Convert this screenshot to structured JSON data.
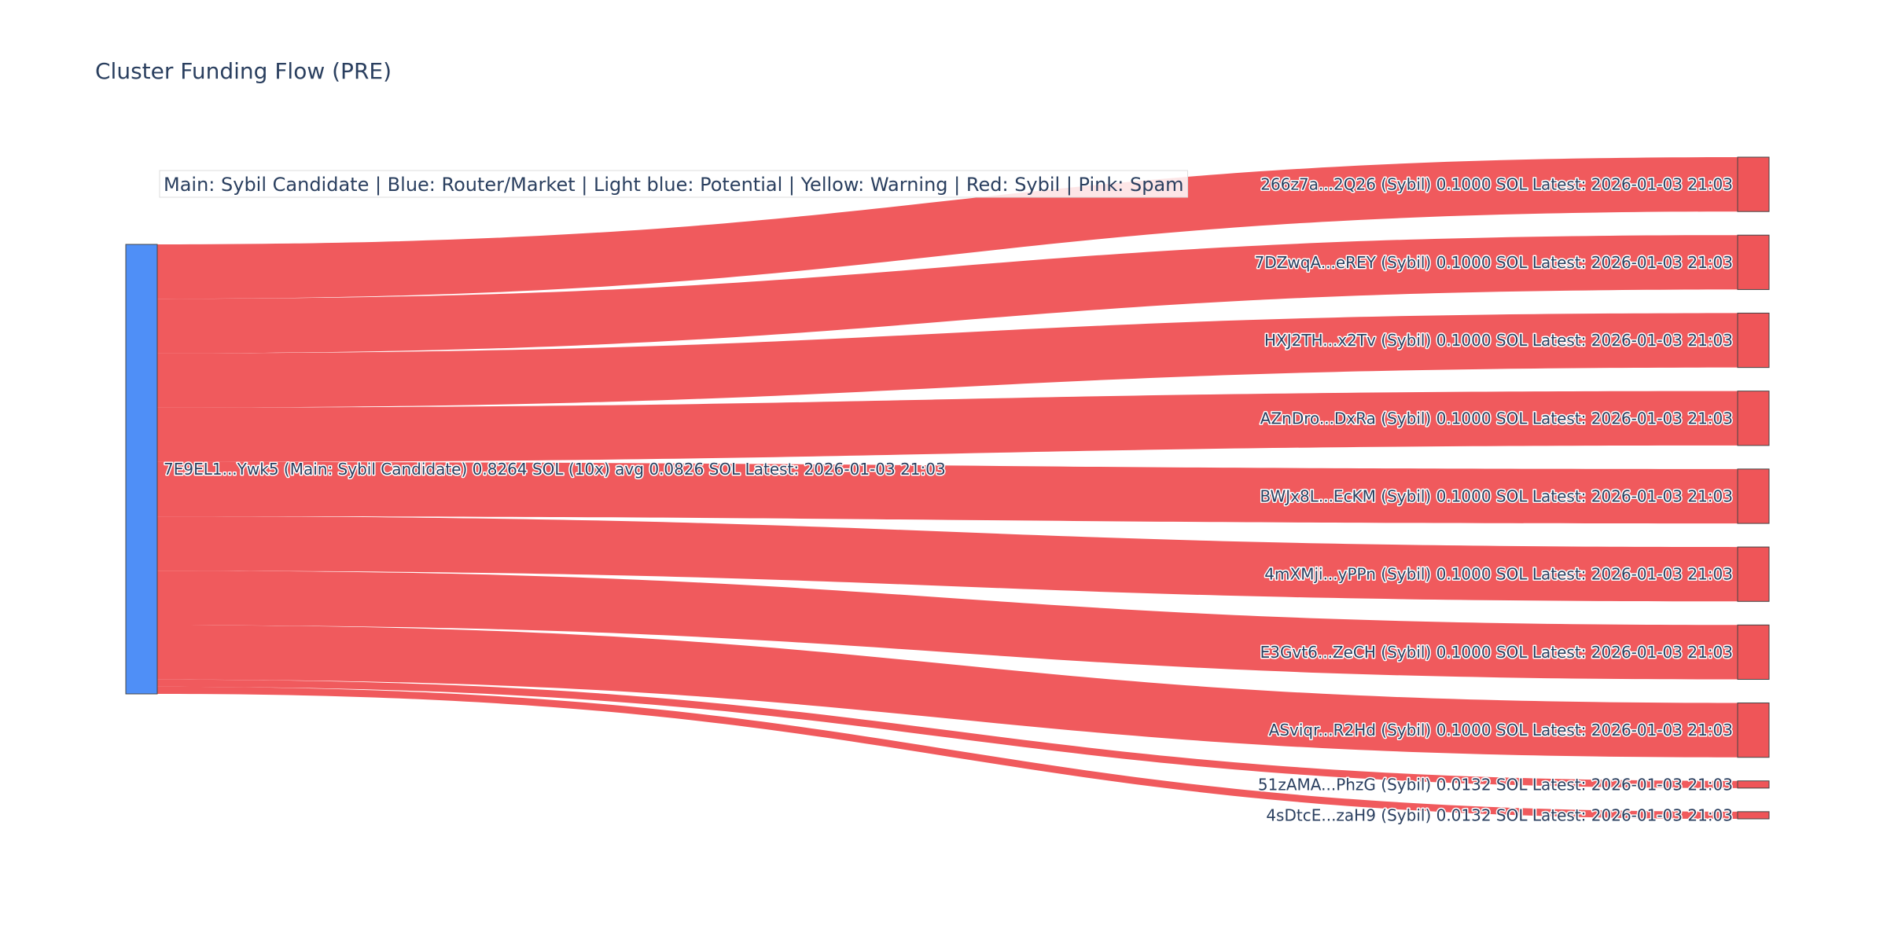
{
  "colors": {
    "source_node": "#4f8ff7",
    "sybil": "#ef5558",
    "node_border": "#444444",
    "text": "#2a3f5f"
  },
  "chart_data": {
    "type": "sankey",
    "title": "Cluster Funding Flow (PRE)",
    "legend_note": "Main: Sybil Candidate  |  Blue: Router/Market | Light blue: Potential | Yellow: Warning | Red: Sybil | Pink: Spam",
    "legend_placement": "top-left",
    "source": {
      "label": "7E9EL1...Ywk5 (Main: Sybil Candidate) 0.8264 SOL (10x) avg 0.0826 SOL Latest: 2026-01-03 21:03",
      "total": 0.8264,
      "category": "Main: Sybil Candidate"
    },
    "targets": [
      {
        "label": "266z7a...2Q26 (Sybil) 0.1000 SOL Latest: 2026-01-03 21:03",
        "value": 0.1,
        "category": "Sybil"
      },
      {
        "label": "7DZwqA...eREY (Sybil) 0.1000 SOL Latest: 2026-01-03 21:03",
        "value": 0.1,
        "category": "Sybil"
      },
      {
        "label": "HXJ2TH...x2Tv (Sybil) 0.1000 SOL Latest: 2026-01-03 21:03",
        "value": 0.1,
        "category": "Sybil"
      },
      {
        "label": "AZnDro...DxRa (Sybil) 0.1000 SOL Latest: 2026-01-03 21:03",
        "value": 0.1,
        "category": "Sybil"
      },
      {
        "label": "BWJx8L...EcKM (Sybil) 0.1000 SOL Latest: 2026-01-03 21:03",
        "value": 0.1,
        "category": "Sybil"
      },
      {
        "label": "4mXMji...yPPn (Sybil) 0.1000 SOL Latest: 2026-01-03 21:03",
        "value": 0.1,
        "category": "Sybil"
      },
      {
        "label": "E3Gvt6...ZeCH (Sybil) 0.1000 SOL Latest: 2026-01-03 21:03",
        "value": 0.1,
        "category": "Sybil"
      },
      {
        "label": "ASviqr...R2Hd (Sybil) 0.1000 SOL Latest: 2026-01-03 21:03",
        "value": 0.1,
        "category": "Sybil"
      },
      {
        "label": "51zAMA...PhzG (Sybil) 0.0132 SOL Latest: 2026-01-03 21:03",
        "value": 0.0132,
        "category": "Sybil"
      },
      {
        "label": "4sDtcE...zaH9 (Sybil) 0.0132 SOL Latest: 2026-01-03 21:03",
        "value": 0.0132,
        "category": "Sybil"
      }
    ]
  }
}
